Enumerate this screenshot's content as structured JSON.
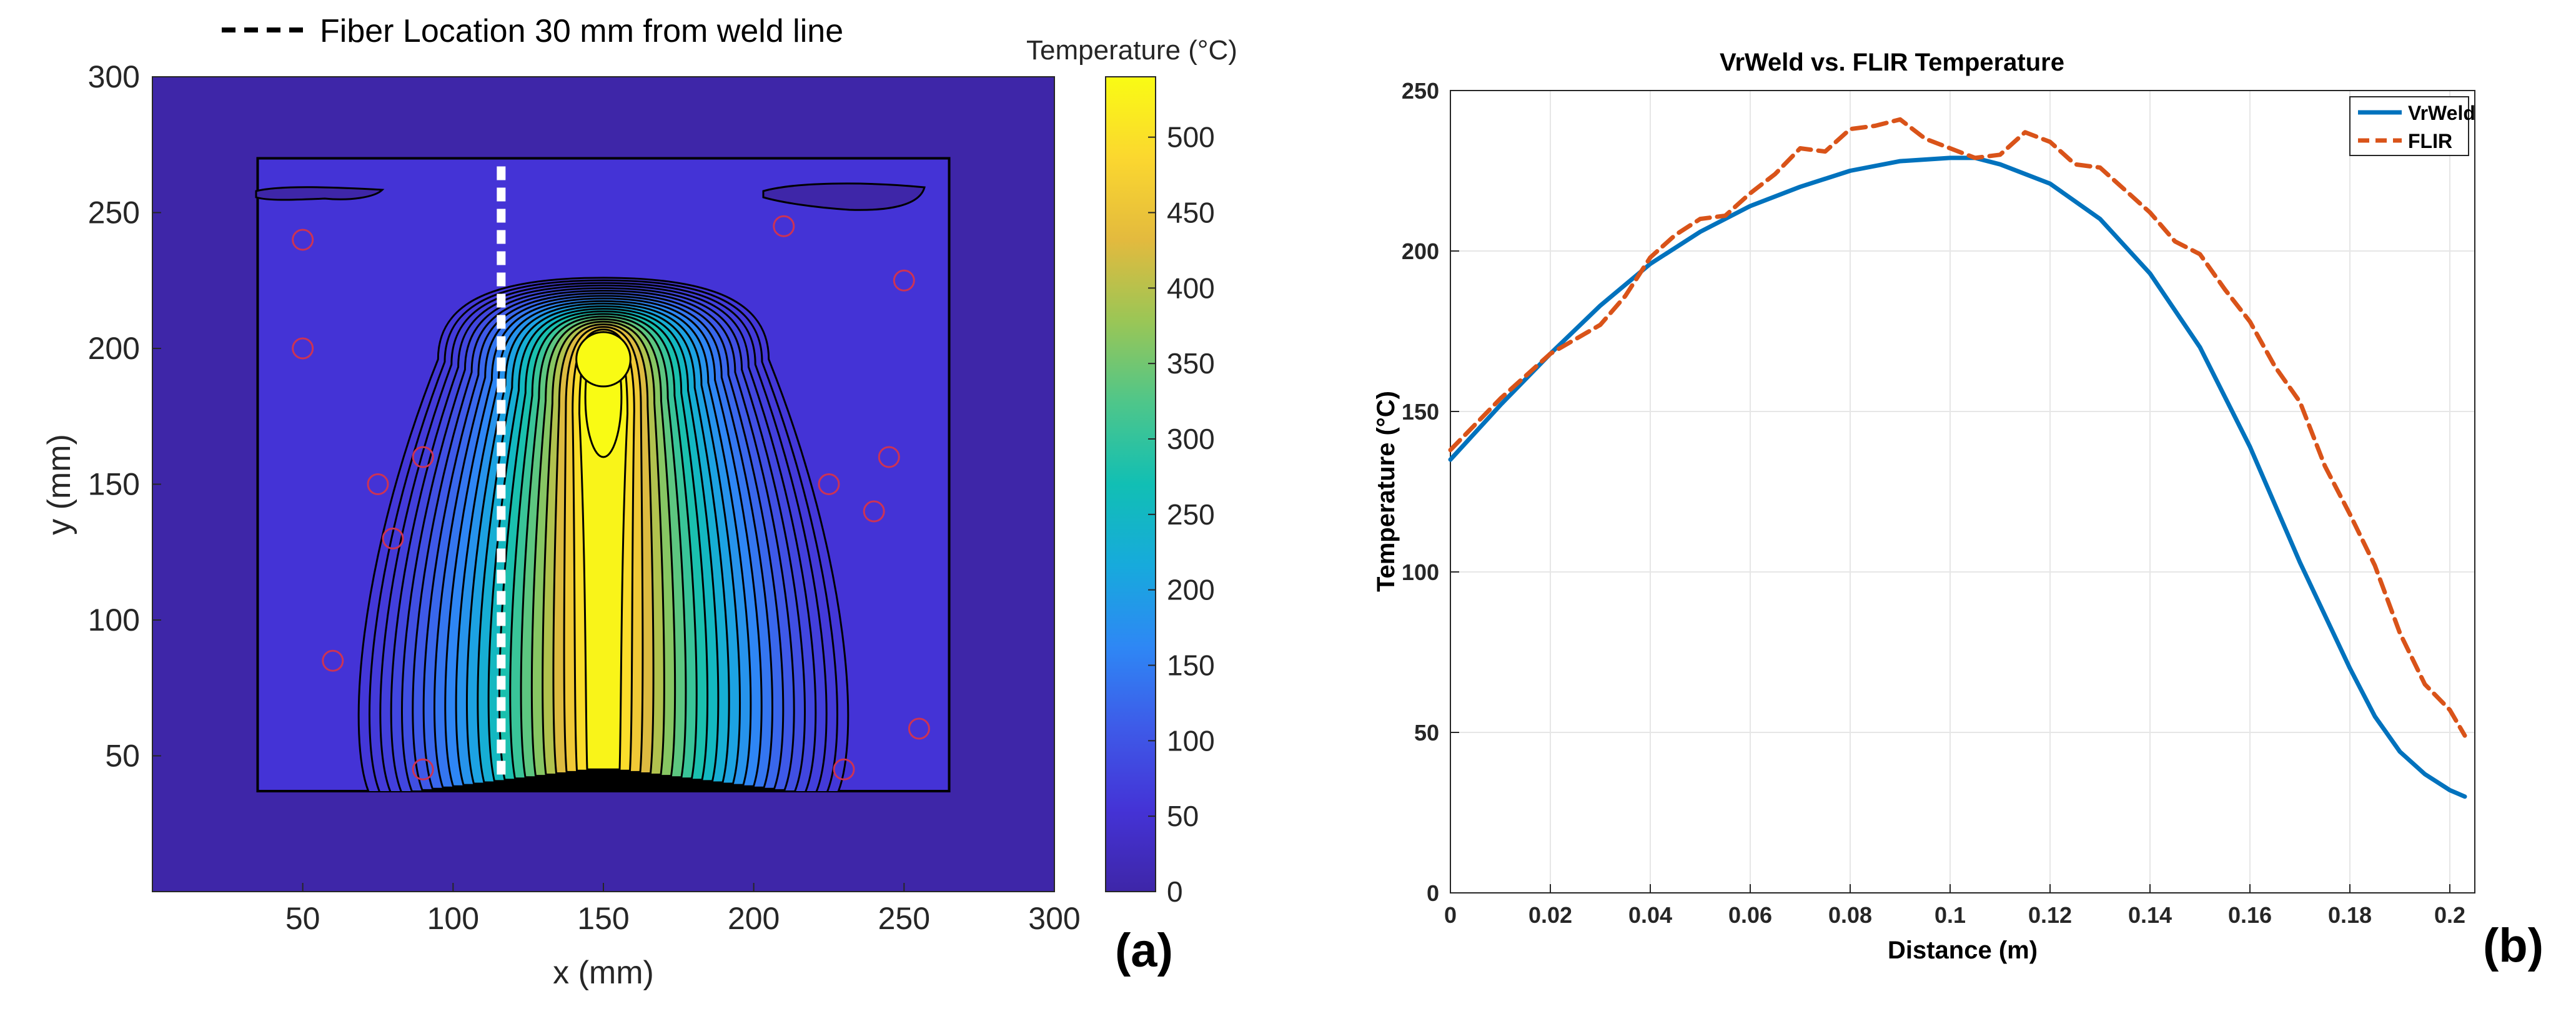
{
  "chart_data": [
    {
      "type": "heatmap",
      "panel_label": "(a)",
      "legend": "Fiber Location 30 mm from weld line",
      "xlabel": "x (mm)",
      "ylabel": "y (mm)",
      "xlim": [
        0,
        300
      ],
      "ylim": [
        0,
        300
      ],
      "xticks": [
        50,
        100,
        150,
        200,
        250,
        300
      ],
      "yticks": [
        50,
        100,
        150,
        200,
        250,
        300
      ],
      "fiber_x": 116,
      "fiber_y_range": [
        43,
        267
      ],
      "colorbar": {
        "label": "Temperature (°C)",
        "range": [
          0,
          540
        ],
        "ticks": [
          0,
          50,
          100,
          150,
          200,
          250,
          300,
          350,
          400,
          450,
          500
        ],
        "colors": [
          "#3e26a8",
          "#4433d6",
          "#3e5ae8",
          "#2e87f5",
          "#17aadc",
          "#11bfb4",
          "#4ec68a",
          "#9ac656",
          "#e3ba3e",
          "#fbd72f",
          "#f9fb14"
        ]
      },
      "plate": {
        "x": [
          35,
          265
        ],
        "y": [
          37,
          270
        ]
      },
      "hot_spot": {
        "x": 150,
        "y": 190,
        "max": 540
      },
      "markers": [
        [
          50,
          240
        ],
        [
          50,
          200
        ],
        [
          75,
          150
        ],
        [
          80,
          130
        ],
        [
          90,
          160
        ],
        [
          60,
          85
        ],
        [
          90,
          45
        ],
        [
          210,
          245
        ],
        [
          250,
          225
        ],
        [
          225,
          150
        ],
        [
          240,
          140
        ],
        [
          245,
          160
        ],
        [
          255,
          60
        ],
        [
          230,
          45
        ]
      ],
      "colors": {
        "background": "#3e26a8",
        "contour": "#000000",
        "marker": "#cc3355",
        "fiber": "#ffffff"
      }
    },
    {
      "type": "line",
      "panel_label": "(b)",
      "title": "VrWeld vs. FLIR Temperature",
      "xlabel": "Distance (m)",
      "ylabel": "Temperature (°C)",
      "xlim": [
        0,
        0.205
      ],
      "ylim": [
        0,
        250
      ],
      "xticks": [
        0,
        0.02,
        0.04,
        0.06,
        0.08,
        0.1,
        0.12,
        0.14,
        0.16,
        0.18,
        0.2
      ],
      "xtick_labels": [
        "0",
        "0.02",
        "0.04",
        "0.06",
        "0.08",
        "0.1",
        "0.12",
        "0.14",
        "0.16",
        "0.18",
        "0.2"
      ],
      "yticks": [
        0,
        50,
        100,
        150,
        200,
        250
      ],
      "grid": true,
      "legend_position": "top-right",
      "series": [
        {
          "name": "VrWeld",
          "color": "#0072bd",
          "dash": "solid",
          "x": [
            0,
            0.01,
            0.02,
            0.03,
            0.04,
            0.05,
            0.06,
            0.07,
            0.08,
            0.09,
            0.1,
            0.105,
            0.11,
            0.12,
            0.13,
            0.14,
            0.15,
            0.16,
            0.17,
            0.18,
            0.185,
            0.19,
            0.195,
            0.2,
            0.203
          ],
          "values": [
            135,
            152,
            168,
            183,
            196,
            206,
            214,
            220,
            225,
            228,
            229,
            229,
            227,
            221,
            210,
            193,
            170,
            139,
            103,
            70,
            55,
            44,
            37,
            32,
            30
          ]
        },
        {
          "name": "FLIR",
          "color": "#d95319",
          "dash": "dashed",
          "x": [
            0,
            0.01,
            0.02,
            0.03,
            0.035,
            0.04,
            0.045,
            0.05,
            0.055,
            0.06,
            0.065,
            0.07,
            0.075,
            0.08,
            0.085,
            0.09,
            0.095,
            0.1,
            0.105,
            0.11,
            0.115,
            0.12,
            0.125,
            0.13,
            0.135,
            0.14,
            0.145,
            0.15,
            0.155,
            0.16,
            0.165,
            0.17,
            0.175,
            0.18,
            0.185,
            0.19,
            0.195,
            0.2,
            0.203
          ],
          "values": [
            138,
            154,
            168,
            177,
            186,
            198,
            205,
            210,
            211,
            218,
            224,
            232,
            231,
            238,
            239,
            241,
            235,
            232,
            229,
            230,
            237,
            234,
            227,
            226,
            219,
            212,
            203,
            199,
            188,
            178,
            164,
            153,
            133,
            118,
            102,
            81,
            65,
            57,
            49
          ]
        }
      ]
    }
  ]
}
